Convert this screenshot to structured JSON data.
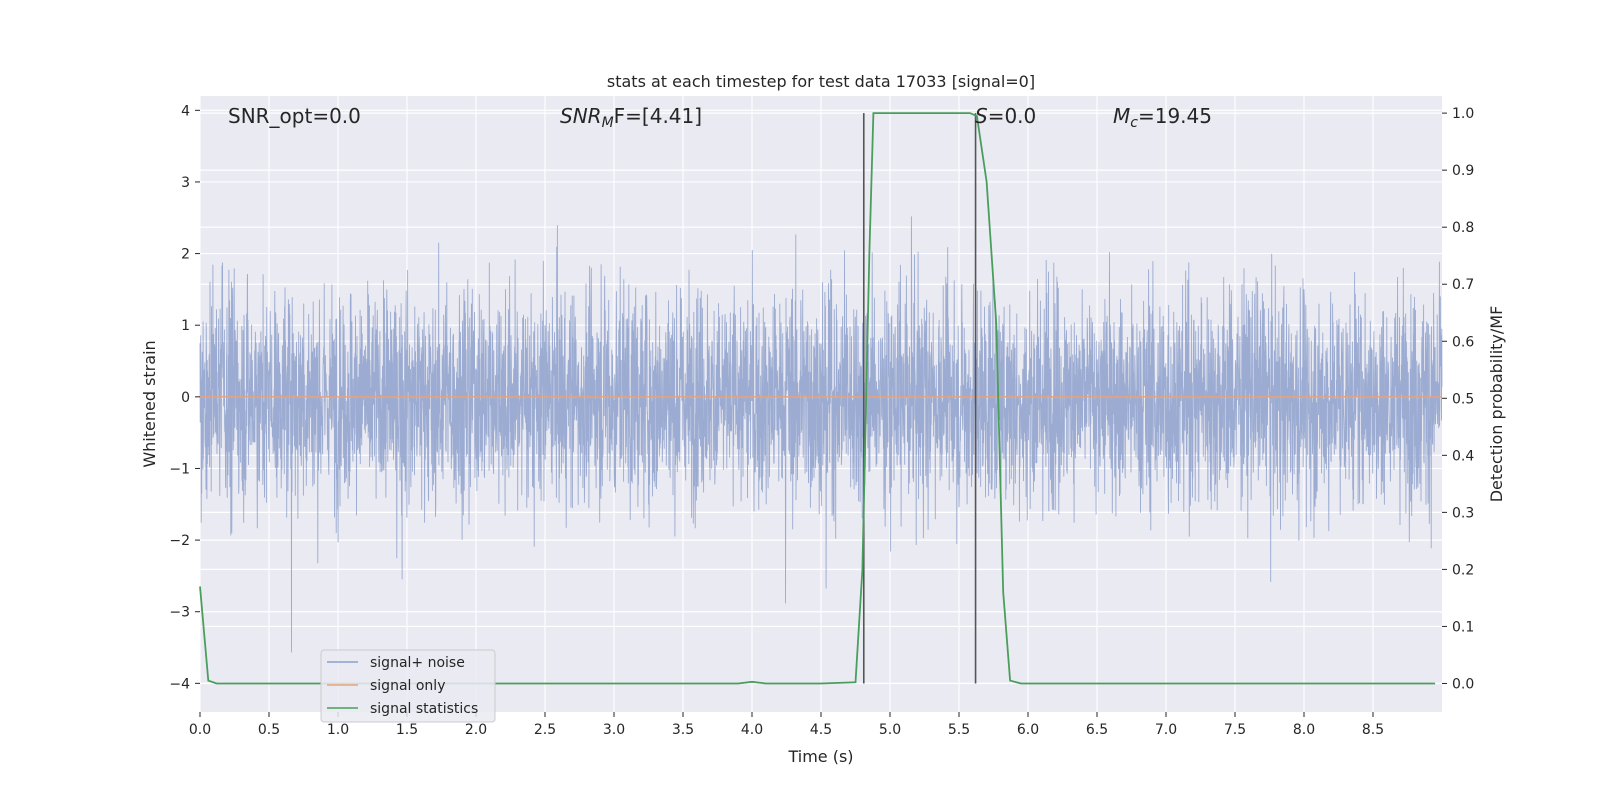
{
  "chart_data": {
    "type": "line",
    "title": "stats at each timestep for test data 17033 [signal=0]",
    "xlabel": "Time (s)",
    "ylabel_left": "Whitened strain",
    "ylabel_right": "Detection probability/MF",
    "xlim": [
      0.0,
      9.0
    ],
    "ylim_left": [
      -4.4,
      4.2
    ],
    "ylim_right": [
      -0.05,
      1.03
    ],
    "x_ticks": [
      "0.0",
      "0.5",
      "1.0",
      "1.5",
      "2.0",
      "2.5",
      "3.0",
      "3.5",
      "4.0",
      "4.5",
      "5.0",
      "5.5",
      "6.0",
      "6.5",
      "7.0",
      "7.5",
      "8.0",
      "8.5"
    ],
    "y_left_ticks": [
      "4",
      "3",
      "2",
      "1",
      "0",
      "−1",
      "−2",
      "−3",
      "−4"
    ],
    "y_right_ticks": [
      "1.0",
      "0.9",
      "0.8",
      "0.7",
      "0.6",
      "0.5",
      "0.4",
      "0.3",
      "0.2",
      "0.1",
      "0.0"
    ],
    "grid": true,
    "legend_position": "lower-left",
    "annotations": {
      "snr_opt": "SNR_opt=0.0",
      "snr_mf_base": "SNR",
      "snr_mf_sub": "M",
      "snr_mf_tail": "F=[4.41]",
      "s_var": "S",
      "s_value": "=0.0",
      "mc_base": "M",
      "mc_sub": "c",
      "mc_value": "=19.45"
    },
    "series": [
      {
        "name": "signal+ noise",
        "axis": "left",
        "style": "dense noise, amplitude ~±1.7 typical with peaks up to ~3.8",
        "color": "#8da0cb",
        "sample_rate_hz": 2048
      },
      {
        "name": "signal only",
        "axis": "left",
        "color": "#e8a27c",
        "x": [
          0.0,
          9.0
        ],
        "y": [
          0.0,
          0.0
        ]
      },
      {
        "name": "signal statistics",
        "axis": "right",
        "color": "#4a9e5c",
        "x": [
          0.0,
          0.06,
          0.12,
          0.5,
          1.0,
          2.0,
          3.0,
          3.9,
          4.0,
          4.1,
          4.5,
          4.75,
          4.8,
          4.85,
          4.88,
          5.0,
          5.5,
          5.58,
          5.63,
          5.7,
          5.77,
          5.82,
          5.87,
          5.95,
          6.5,
          7.0,
          8.0,
          8.95
        ],
        "y": [
          0.17,
          0.005,
          0.0,
          0.0,
          0.0,
          0.0,
          0.0,
          0.0,
          0.003,
          0.0,
          0.0,
          0.002,
          0.2,
          0.75,
          1.0,
          1.0,
          1.0,
          1.0,
          0.995,
          0.88,
          0.63,
          0.16,
          0.005,
          0.0,
          0.0,
          0.0,
          0.0,
          0.0
        ]
      }
    ],
    "vertical_lines": [
      4.81,
      5.62
    ],
    "vertical_line_ylim_right": [
      0.0,
      1.0
    ]
  }
}
